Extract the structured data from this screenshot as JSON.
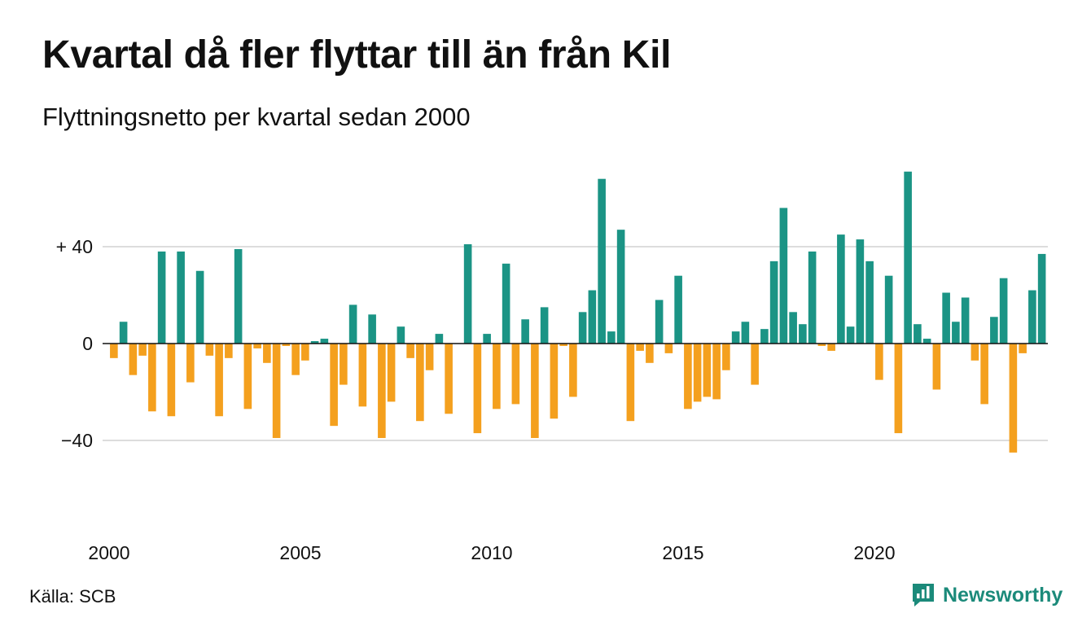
{
  "title": "Kvartal då fler flyttar till än från Kil",
  "subtitle": "Flyttningsnetto per kvartal sedan 2000",
  "source": "Källa: SCB",
  "brand": {
    "name": "Newsworthy",
    "icon": "newsworthy-logo-icon"
  },
  "colors": {
    "positive": "#1b9485",
    "negative": "#f4a01e",
    "grid": "#dddddd",
    "zero_line": "#111111"
  },
  "chart_data": {
    "type": "bar",
    "x_start_year": 2000,
    "periods_per_year": 4,
    "values": [
      -6,
      9,
      -13,
      -5,
      -28,
      38,
      -30,
      38,
      -16,
      30,
      -5,
      -30,
      -6,
      39,
      -27,
      -2,
      -8,
      -39,
      -1,
      -13,
      -7,
      1,
      2,
      -34,
      -17,
      16,
      -26,
      12,
      -39,
      -24,
      7,
      -6,
      -32,
      -11,
      4,
      -29,
      0,
      41,
      -37,
      4,
      -27,
      33,
      -25,
      10,
      -39,
      15,
      -31,
      -1,
      -22,
      13,
      22,
      68,
      5,
      47,
      -32,
      -3,
      -8,
      18,
      -4,
      28,
      -27,
      -24,
      -22,
      -23,
      -11,
      5,
      9,
      -17,
      6,
      34,
      56,
      13,
      8,
      38,
      -1,
      -3,
      45,
      7,
      43,
      34,
      -15,
      28,
      -37,
      71,
      8,
      2,
      -19,
      21,
      9,
      19,
      -7,
      -25,
      11,
      27,
      -45,
      -4,
      22,
      37
    ],
    "x_ticks": [
      "2000",
      "2005",
      "2010",
      "2015",
      "2020"
    ],
    "y_ticks": [
      {
        "value": 40,
        "label": "+ 40"
      },
      {
        "value": 0,
        "label": "0"
      },
      {
        "value": -40,
        "label": "−40"
      }
    ],
    "ylim": [
      -50,
      72
    ],
    "grid": true,
    "legend": "none"
  }
}
